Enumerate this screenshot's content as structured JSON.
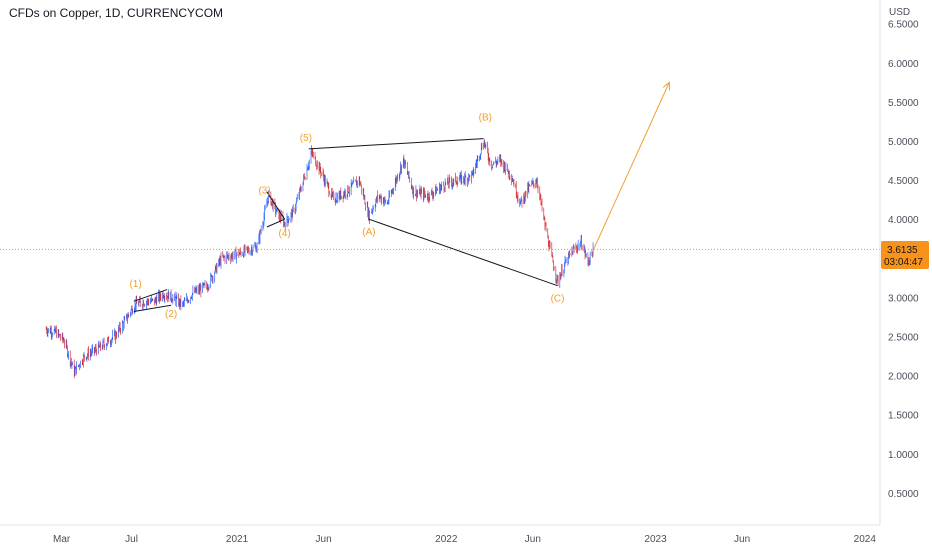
{
  "header": {
    "title": "CFDs on Copper, 1D, CURRENCYCOM"
  },
  "price_axis": {
    "currency_label": "USD",
    "ticks": [
      "6.5000",
      "6.0000",
      "5.5000",
      "5.0000",
      "4.5000",
      "4.0000",
      "3.0000",
      "2.5000",
      "2.0000",
      "1.5000",
      "1.0000",
      "0.5000"
    ]
  },
  "last_price": {
    "value": "3.6135",
    "countdown": "03:04:47"
  },
  "colors": {
    "accent": "#f0a030",
    "up": "#2962ff",
    "down": "#d0363f",
    "line": "#131722",
    "badge": "#f7931a"
  },
  "chart_data": {
    "type": "candlestick",
    "title": "CFDs on Copper, 1D, CURRENCYCOM",
    "y_unit": "USD",
    "ylim": [
      0,
      6.8
    ],
    "x_range": [
      "2020-02-01",
      "2024-04-15"
    ],
    "time_ticks": [
      {
        "label": "Mar",
        "date": "2020-03-01"
      },
      {
        "label": "Jul",
        "date": "2020-07-01"
      },
      {
        "label": "2021",
        "date": "2021-01-01"
      },
      {
        "label": "Jun",
        "date": "2021-06-01"
      },
      {
        "label": "2022",
        "date": "2022-01-01"
      },
      {
        "label": "Jun",
        "date": "2022-06-01"
      },
      {
        "label": "2023",
        "date": "2023-01-01"
      },
      {
        "label": "Jun",
        "date": "2023-06-01"
      },
      {
        "label": "2024",
        "date": "2024-01-01"
      }
    ],
    "price_path": [
      [
        "2020-02-01",
        2.6
      ],
      [
        "2020-02-20",
        2.55
      ],
      [
        "2020-03-05",
        2.45
      ],
      [
        "2020-03-23",
        2.05
      ],
      [
        "2020-04-10",
        2.25
      ],
      [
        "2020-05-05",
        2.35
      ],
      [
        "2020-06-01",
        2.5
      ],
      [
        "2020-06-20",
        2.7
      ],
      [
        "2020-07-05",
        2.9
      ],
      [
        "2020-07-25",
        2.95
      ],
      [
        "2020-08-10",
        2.95
      ],
      [
        "2020-08-25",
        3.05
      ],
      [
        "2020-09-10",
        3.0
      ],
      [
        "2020-09-28",
        2.9
      ],
      [
        "2020-10-15",
        3.05
      ],
      [
        "2020-11-10",
        3.15
      ],
      [
        "2020-12-05",
        3.5
      ],
      [
        "2020-12-31",
        3.55
      ],
      [
        "2021-01-20",
        3.6
      ],
      [
        "2021-02-05",
        3.65
      ],
      [
        "2021-02-25",
        4.3
      ],
      [
        "2021-03-10",
        4.1
      ],
      [
        "2021-03-25",
        3.95
      ],
      [
        "2021-04-10",
        4.1
      ],
      [
        "2021-05-01",
        4.6
      ],
      [
        "2021-05-11",
        4.85
      ],
      [
        "2021-05-28",
        4.6
      ],
      [
        "2021-06-18",
        4.25
      ],
      [
        "2021-07-10",
        4.35
      ],
      [
        "2021-08-02",
        4.5
      ],
      [
        "2021-08-19",
        4.05
      ],
      [
        "2021-09-05",
        4.3
      ],
      [
        "2021-09-20",
        4.2
      ],
      [
        "2021-10-18",
        4.75
      ],
      [
        "2021-11-05",
        4.35
      ],
      [
        "2021-12-01",
        4.3
      ],
      [
        "2021-12-31",
        4.45
      ],
      [
        "2022-01-20",
        4.5
      ],
      [
        "2022-02-15",
        4.55
      ],
      [
        "2022-03-07",
        5.0
      ],
      [
        "2022-03-20",
        4.7
      ],
      [
        "2022-04-05",
        4.75
      ],
      [
        "2022-04-25",
        4.55
      ],
      [
        "2022-05-10",
        4.2
      ],
      [
        "2022-05-25",
        4.4
      ],
      [
        "2022-06-08",
        4.5
      ],
      [
        "2022-06-20",
        4.0
      ],
      [
        "2022-07-01",
        3.6
      ],
      [
        "2022-07-14",
        3.2
      ],
      [
        "2022-07-25",
        3.4
      ],
      [
        "2022-08-10",
        3.6
      ],
      [
        "2022-08-25",
        3.7
      ],
      [
        "2022-09-05",
        3.45
      ],
      [
        "2022-09-14",
        3.6
      ]
    ],
    "drawn_wave_lines": [
      {
        "from": [
          "2021-05-06",
          4.9
        ],
        "to": [
          "2022-03-07",
          5.03
        ]
      },
      {
        "from": [
          "2021-08-19",
          4.0
        ],
        "to": [
          "2022-07-14",
          3.15
        ]
      },
      {
        "from": [
          "2020-07-05",
          2.95
        ],
        "to": [
          "2020-09-01",
          3.1
        ]
      },
      {
        "from": [
          "2020-07-05",
          2.82
        ],
        "to": [
          "2020-09-08",
          2.9
        ]
      },
      {
        "from": [
          "2021-02-22",
          4.35
        ],
        "to": [
          "2021-03-25",
          4.0
        ]
      },
      {
        "from": [
          "2021-02-22",
          3.9
        ],
        "to": [
          "2021-03-25",
          4.0
        ]
      }
    ],
    "projection": {
      "from": [
        "2022-09-14",
        3.6
      ],
      "to": [
        "2023-01-25",
        5.75
      ]
    },
    "wave_labels": [
      {
        "text": "(1)",
        "date": "2020-07-08",
        "price": 3.13
      },
      {
        "text": "(2)",
        "date": "2020-09-08",
        "price": 2.75
      },
      {
        "text": "(3)",
        "date": "2021-02-18",
        "price": 4.33
      },
      {
        "text": "(4)",
        "date": "2021-03-25",
        "price": 3.78
      },
      {
        "text": "(5)",
        "date": "2021-05-01",
        "price": 5.0
      },
      {
        "text": "(A)",
        "date": "2021-08-19",
        "price": 3.8
      },
      {
        "text": "(B)",
        "date": "2022-03-10",
        "price": 5.26
      },
      {
        "text": "(C)",
        "date": "2022-07-14",
        "price": 2.95
      }
    ],
    "last_price": 3.6135,
    "grid": false,
    "legend": "none"
  }
}
